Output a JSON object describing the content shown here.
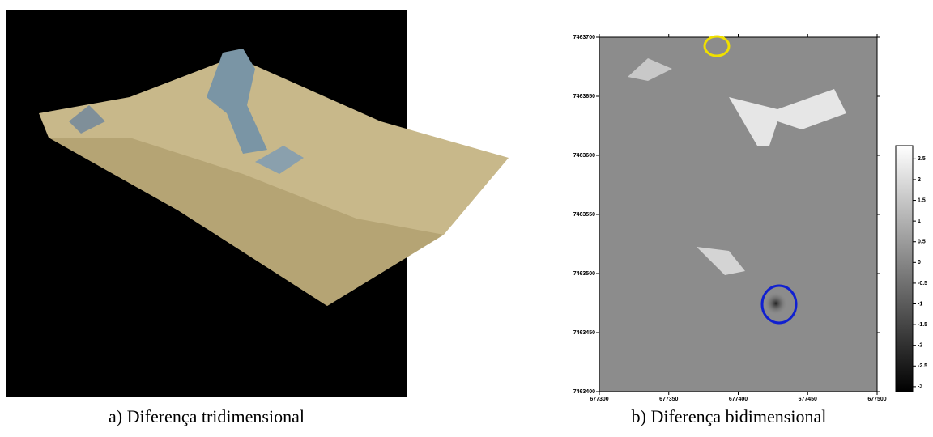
{
  "figure": {
    "panels": [
      {
        "caption": "a) Diferença tridimensional"
      },
      {
        "caption": "b) Diferença bidimensional",
        "xlim": [
          677300,
          677500
        ],
        "xticks": [
          677300,
          677350,
          677400,
          677450,
          677500
        ],
        "ylim": [
          7463400,
          7463700
        ],
        "yticks": [
          7463700,
          7463650,
          7463600,
          7463550,
          7463500,
          7463450,
          7463400
        ],
        "clim": [
          -3.1,
          2.8
        ],
        "cticks": [
          2.5,
          2,
          1.5,
          1,
          0.5,
          0,
          -0.5,
          -1,
          -1.5,
          -2,
          -2.5,
          -3
        ]
      }
    ]
  }
}
